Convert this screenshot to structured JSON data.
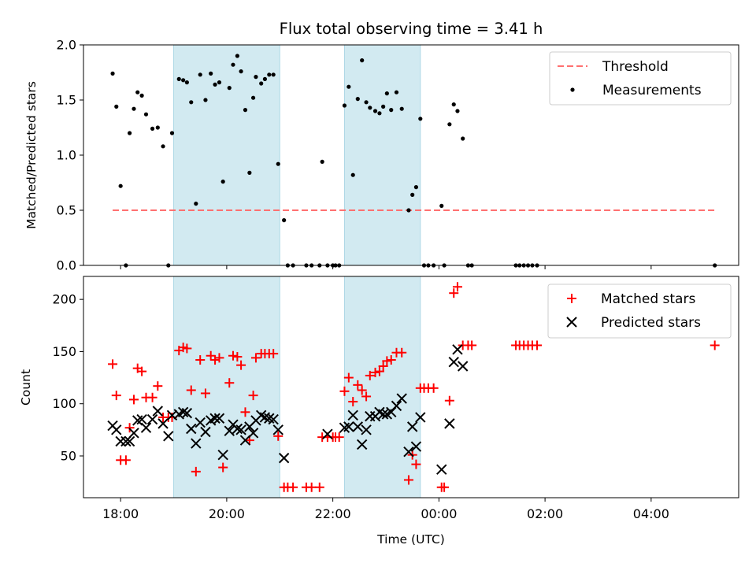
{
  "title": "Flux total observing time = 3.41 h",
  "colors": {
    "threshold": "#ff7070",
    "measurement": "#000000",
    "matched": "#ff0000",
    "predicted": "#000000",
    "shade": "#add8e6"
  },
  "chart_data": [
    {
      "type": "scatter",
      "panel": "top",
      "ylabel": "Matched/Predicted stars",
      "xlim": [
        17.3,
        29.65
      ],
      "ylim": [
        0,
        2.0
      ],
      "yticks": [
        0.0,
        0.5,
        1.0,
        1.5,
        2.0
      ],
      "ytick_labels": [
        "0.0",
        "0.5",
        "1.0",
        "1.5",
        "2.0"
      ],
      "shaded_ranges": [
        [
          19.0,
          21.0
        ],
        [
          22.22,
          23.65
        ]
      ],
      "threshold": {
        "name": "Threshold",
        "value": 0.5,
        "x_range": [
          17.85,
          29.2
        ]
      },
      "legend": [
        "Threshold",
        "Measurements"
      ],
      "legend_loc": "upper right",
      "series": [
        {
          "name": "Measurements",
          "marker": "dot",
          "points": [
            [
              17.85,
              1.74
            ],
            [
              17.92,
              1.44
            ],
            [
              18.0,
              0.72
            ],
            [
              18.1,
              0.0
            ],
            [
              18.17,
              1.2
            ],
            [
              18.25,
              1.42
            ],
            [
              18.32,
              1.57
            ],
            [
              18.4,
              1.54
            ],
            [
              18.48,
              1.37
            ],
            [
              18.6,
              1.24
            ],
            [
              18.7,
              1.25
            ],
            [
              18.8,
              1.08
            ],
            [
              18.9,
              0.0
            ],
            [
              18.97,
              1.2
            ],
            [
              19.1,
              1.69
            ],
            [
              19.18,
              1.68
            ],
            [
              19.25,
              1.66
            ],
            [
              19.33,
              1.48
            ],
            [
              19.42,
              0.56
            ],
            [
              19.5,
              1.73
            ],
            [
              19.6,
              1.5
            ],
            [
              19.7,
              1.74
            ],
            [
              19.78,
              1.64
            ],
            [
              19.86,
              1.66
            ],
            [
              19.93,
              0.76
            ],
            [
              20.05,
              1.61
            ],
            [
              20.12,
              1.82
            ],
            [
              20.2,
              1.9
            ],
            [
              20.27,
              1.76
            ],
            [
              20.35,
              1.41
            ],
            [
              20.43,
              0.84
            ],
            [
              20.5,
              1.52
            ],
            [
              20.55,
              1.71
            ],
            [
              20.65,
              1.65
            ],
            [
              20.72,
              1.69
            ],
            [
              20.8,
              1.73
            ],
            [
              20.88,
              1.73
            ],
            [
              20.97,
              0.92
            ],
            [
              21.08,
              0.41
            ],
            [
              21.15,
              0.0
            ],
            [
              21.25,
              0.0
            ],
            [
              21.5,
              0.0
            ],
            [
              21.6,
              0.0
            ],
            [
              21.75,
              0.0
            ],
            [
              21.8,
              0.94
            ],
            [
              21.9,
              0.0
            ],
            [
              22.0,
              0.0
            ],
            [
              22.05,
              0.0
            ],
            [
              22.12,
              0.0
            ],
            [
              22.22,
              1.45
            ],
            [
              22.3,
              1.62
            ],
            [
              22.38,
              0.82
            ],
            [
              22.47,
              1.51
            ],
            [
              22.55,
              1.86
            ],
            [
              22.63,
              1.48
            ],
            [
              22.7,
              1.43
            ],
            [
              22.8,
              1.4
            ],
            [
              22.88,
              1.38
            ],
            [
              22.95,
              1.44
            ],
            [
              23.02,
              1.56
            ],
            [
              23.1,
              1.41
            ],
            [
              23.2,
              1.57
            ],
            [
              23.3,
              1.42
            ],
            [
              23.43,
              0.5
            ],
            [
              23.5,
              0.64
            ],
            [
              23.57,
              0.71
            ],
            [
              23.65,
              1.33
            ],
            [
              23.72,
              0.0
            ],
            [
              23.8,
              0.0
            ],
            [
              23.9,
              0.0
            ],
            [
              24.05,
              0.54
            ],
            [
              24.1,
              0.0
            ],
            [
              24.2,
              1.28
            ],
            [
              24.28,
              1.46
            ],
            [
              24.35,
              1.4
            ],
            [
              24.45,
              1.15
            ],
            [
              24.55,
              0.0
            ],
            [
              24.62,
              0.0
            ],
            [
              25.45,
              0.0
            ],
            [
              25.52,
              0.0
            ],
            [
              25.6,
              0.0
            ],
            [
              25.68,
              0.0
            ],
            [
              25.76,
              0.0
            ],
            [
              25.85,
              0.0
            ],
            [
              29.2,
              0.0
            ]
          ]
        }
      ]
    },
    {
      "type": "scatter",
      "panel": "bottom",
      "xlabel": "Time (UTC)",
      "ylabel": "Count",
      "xlim": [
        17.3,
        29.65
      ],
      "ylim": [
        10,
        222
      ],
      "yticks": [
        50,
        100,
        150,
        200
      ],
      "ytick_labels": [
        "50",
        "100",
        "150",
        "200"
      ],
      "xticks": [
        18,
        20,
        22,
        24,
        26,
        28
      ],
      "xtick_labels": [
        "18:00",
        "20:00",
        "22:00",
        "00:00",
        "02:00",
        "04:00"
      ],
      "shaded_ranges": [
        [
          19.0,
          21.0
        ],
        [
          22.22,
          23.65
        ]
      ],
      "legend": [
        "Matched stars",
        "Predicted stars"
      ],
      "legend_loc": "upper right",
      "series": [
        {
          "name": "Matched stars",
          "marker": "plus",
          "points": [
            [
              17.85,
              138
            ],
            [
              17.92,
              108
            ],
            [
              18.0,
              46
            ],
            [
              18.1,
              46
            ],
            [
              18.17,
              77
            ],
            [
              18.25,
              104
            ],
            [
              18.32,
              134
            ],
            [
              18.4,
              131
            ],
            [
              18.48,
              106
            ],
            [
              18.6,
              106
            ],
            [
              18.7,
              117
            ],
            [
              18.8,
              87
            ],
            [
              18.9,
              87
            ],
            [
              18.97,
              87
            ],
            [
              19.1,
              151
            ],
            [
              19.18,
              154
            ],
            [
              19.25,
              153
            ],
            [
              19.33,
              113
            ],
            [
              19.42,
              35
            ],
            [
              19.5,
              142
            ],
            [
              19.6,
              110
            ],
            [
              19.7,
              146
            ],
            [
              19.78,
              142
            ],
            [
              19.86,
              144
            ],
            [
              19.93,
              39
            ],
            [
              20.05,
              120
            ],
            [
              20.12,
              146
            ],
            [
              20.2,
              145
            ],
            [
              20.27,
              137
            ],
            [
              20.35,
              92
            ],
            [
              20.43,
              65
            ],
            [
              20.5,
              108
            ],
            [
              20.55,
              144
            ],
            [
              20.65,
              148
            ],
            [
              20.72,
              148
            ],
            [
              20.8,
              148
            ],
            [
              20.88,
              148
            ],
            [
              20.97,
              69
            ],
            [
              21.08,
              20
            ],
            [
              21.15,
              20
            ],
            [
              21.25,
              20
            ],
            [
              21.5,
              20
            ],
            [
              21.6,
              20
            ],
            [
              21.75,
              20
            ],
            [
              21.8,
              68
            ],
            [
              21.9,
              68
            ],
            [
              22.0,
              68
            ],
            [
              22.05,
              68
            ],
            [
              22.12,
              68
            ],
            [
              22.22,
              112
            ],
            [
              22.3,
              125
            ],
            [
              22.38,
              102
            ],
            [
              22.47,
              118
            ],
            [
              22.55,
              113
            ],
            [
              22.63,
              107
            ],
            [
              22.7,
              127
            ],
            [
              22.8,
              130
            ],
            [
              22.88,
              131
            ],
            [
              22.95,
              136
            ],
            [
              23.02,
              141
            ],
            [
              23.1,
              142
            ],
            [
              23.2,
              149
            ],
            [
              23.3,
              149
            ],
            [
              23.43,
              27
            ],
            [
              23.5,
              51
            ],
            [
              23.57,
              42
            ],
            [
              23.65,
              115
            ],
            [
              23.72,
              115
            ],
            [
              23.8,
              115
            ],
            [
              23.9,
              115
            ],
            [
              24.05,
              20
            ],
            [
              24.1,
              20
            ],
            [
              24.2,
              103
            ],
            [
              24.28,
              206
            ],
            [
              24.35,
              212
            ],
            [
              24.45,
              156
            ],
            [
              24.55,
              156
            ],
            [
              24.62,
              156
            ],
            [
              25.45,
              156
            ],
            [
              25.52,
              156
            ],
            [
              25.6,
              156
            ],
            [
              25.68,
              156
            ],
            [
              25.76,
              156
            ],
            [
              25.85,
              156
            ],
            [
              29.2,
              156
            ]
          ]
        },
        {
          "name": "Predicted stars",
          "marker": "x",
          "points": [
            [
              17.85,
              79
            ],
            [
              17.92,
              75
            ],
            [
              18.0,
              64
            ],
            [
              18.1,
              64
            ],
            [
              18.17,
              64
            ],
            [
              18.25,
              72
            ],
            [
              18.32,
              84
            ],
            [
              18.4,
              85
            ],
            [
              18.48,
              77
            ],
            [
              18.6,
              85
            ],
            [
              18.7,
              93
            ],
            [
              18.8,
              81
            ],
            [
              18.9,
              69
            ],
            [
              18.97,
              89
            ],
            [
              19.1,
              90
            ],
            [
              19.18,
              92
            ],
            [
              19.25,
              91
            ],
            [
              19.33,
              76
            ],
            [
              19.42,
              62
            ],
            [
              19.5,
              82
            ],
            [
              19.6,
              73
            ],
            [
              19.7,
              84
            ],
            [
              19.78,
              86
            ],
            [
              19.86,
              86
            ],
            [
              19.93,
              51
            ],
            [
              20.05,
              74
            ],
            [
              20.12,
              80
            ],
            [
              20.2,
              76
            ],
            [
              20.27,
              75
            ],
            [
              20.35,
              65
            ],
            [
              20.43,
              78
            ],
            [
              20.5,
              72
            ],
            [
              20.55,
              84
            ],
            [
              20.65,
              89
            ],
            [
              20.72,
              87
            ],
            [
              20.8,
              86
            ],
            [
              20.88,
              85
            ],
            [
              20.97,
              75
            ],
            [
              21.08,
              48
            ],
            [
              21.9,
              71
            ],
            [
              22.22,
              77
            ],
            [
              22.3,
              78
            ],
            [
              22.38,
              89
            ],
            [
              22.47,
              78
            ],
            [
              22.55,
              61
            ],
            [
              22.63,
              75
            ],
            [
              22.7,
              88
            ],
            [
              22.8,
              88
            ],
            [
              22.88,
              92
            ],
            [
              22.95,
              90
            ],
            [
              23.02,
              90
            ],
            [
              23.1,
              92
            ],
            [
              23.2,
              98
            ],
            [
              23.3,
              105
            ],
            [
              23.43,
              54
            ],
            [
              23.5,
              78
            ],
            [
              23.57,
              59
            ],
            [
              23.65,
              87
            ],
            [
              24.05,
              37
            ],
            [
              24.2,
              81
            ],
            [
              24.28,
              140
            ],
            [
              24.35,
              152
            ],
            [
              24.45,
              136
            ]
          ]
        }
      ]
    }
  ]
}
